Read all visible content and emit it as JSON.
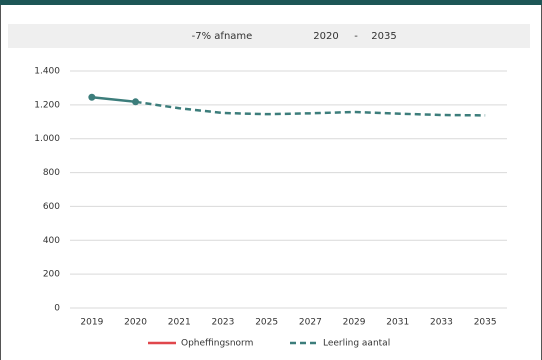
{
  "chart_data": {
    "type": "line",
    "banner": {
      "change": "-7% afname",
      "from": "2020",
      "separator": "-",
      "to": "2035"
    },
    "categories": [
      "2019",
      "2020",
      "2021",
      "2023",
      "2025",
      "2027",
      "2029",
      "2031",
      "2033",
      "2035"
    ],
    "series": [
      {
        "name": "Opheffingsnorm",
        "color": "#e0474c",
        "line_style": "solid",
        "values": [
          null,
          null,
          null,
          null,
          null,
          null,
          null,
          null,
          null,
          null
        ]
      },
      {
        "name": "Leerling aantal",
        "color": "#3c7d7b",
        "line_style": "dashed",
        "solid_points": 2,
        "values": [
          1245,
          1218,
          1180,
          1152,
          1145,
          1150,
          1158,
          1148,
          1140,
          1138
        ]
      }
    ],
    "ylim": [
      0,
      1400
    ],
    "yticks": [
      0,
      200,
      400,
      600,
      800,
      {
        "value": 1000,
        "label": "1.000"
      },
      {
        "value": 1200,
        "label": "1.200"
      },
      {
        "value": 1400,
        "label": "1.400"
      }
    ],
    "grid": true,
    "legend": "bottom"
  }
}
